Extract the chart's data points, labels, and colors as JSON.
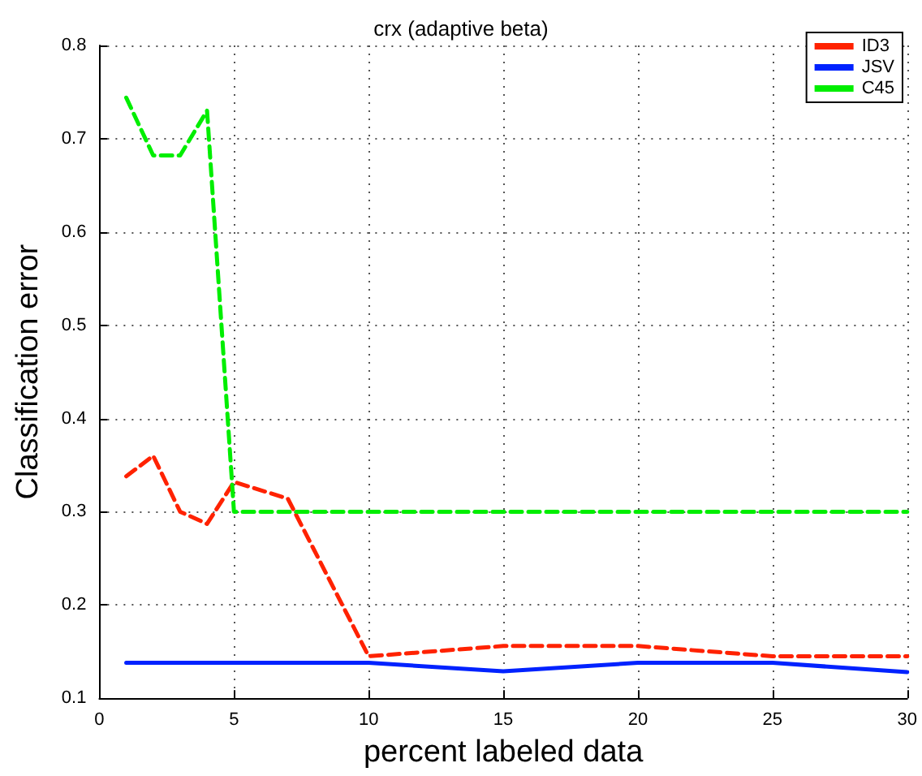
{
  "chart_data": {
    "type": "line",
    "title": "crx (adaptive beta)",
    "xlabel": "percent labeled data",
    "ylabel": "Classification error",
    "x": [
      1,
      2,
      3,
      4,
      5,
      7,
      10,
      15,
      20,
      25,
      30
    ],
    "series": [
      {
        "name": "ID3",
        "color": "#ff2200",
        "line_style": "dashed",
        "values": [
          0.338,
          0.36,
          0.3,
          0.287,
          0.332,
          0.314,
          0.145,
          0.156,
          0.156,
          0.145,
          0.145
        ]
      },
      {
        "name": "JSV",
        "color": "#0022ff",
        "line_style": "solid",
        "values": [
          0.138,
          0.138,
          0.138,
          0.138,
          0.138,
          0.138,
          0.138,
          0.129,
          0.138,
          0.138,
          0.128
        ]
      },
      {
        "name": "C45",
        "color": "#00ee00",
        "line_style": "dashed",
        "values": [
          0.744,
          0.682,
          0.682,
          0.73,
          0.3,
          0.3,
          0.3,
          0.3,
          0.3,
          0.3,
          0.3
        ]
      }
    ],
    "xlim": [
      0,
      30
    ],
    "xticks": [
      0,
      5,
      10,
      15,
      20,
      25,
      30
    ],
    "ylim": [
      0.1,
      0.8
    ],
    "yticks": [
      0.1,
      0.2,
      0.3,
      0.4,
      0.5,
      0.6,
      0.7,
      0.8
    ],
    "grid": true,
    "legend": "top right",
    "marker": "none"
  }
}
